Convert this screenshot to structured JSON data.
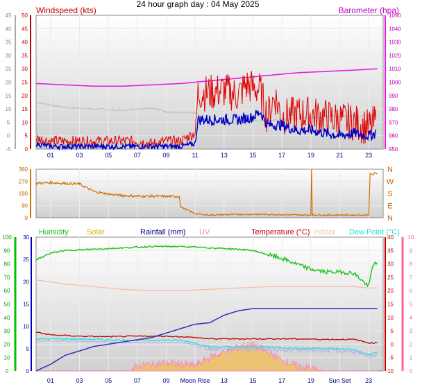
{
  "page_title": "24 hour graph day : 04 May 2025",
  "colors": {
    "wind": "#e00000",
    "wind_avg": "#0000c8",
    "barometer": "#e020e0",
    "hum_main": "#c0c0c0",
    "wind_dir": "#d07000",
    "humidity": "#20c020",
    "solar": "#c8b400",
    "rainfall": "#000080",
    "uv": "#ff80c0",
    "temperature": "#c00000",
    "indoor": "#f0c0a8",
    "dewpoint": "#20e0e0",
    "axis_green": "#00c000",
    "axis_pink": "#ff60a0",
    "axis_blue": "#0000c0"
  },
  "x_ticks": [
    "01",
    "03",
    "05",
    "07",
    "09",
    "11",
    "13",
    "15",
    "17",
    "19",
    "21",
    "23"
  ],
  "chart_data": [
    {
      "type": "line",
      "panel": "wind_barometer",
      "left_axis_label": "Windspeed (kts)",
      "right_axis_label": "Barometer (hpa)",
      "left_outer_ticks": [
        "45",
        "40",
        "35",
        "30",
        "25",
        "20",
        "15",
        "10",
        "5",
        "0",
        "-5"
      ],
      "left_inner_ticks": [
        "50",
        "45",
        "40",
        "35",
        "30",
        "25",
        "20",
        "15",
        "10",
        "5",
        "0"
      ],
      "right_ticks": [
        "1050",
        "1040",
        "1030",
        "1020",
        "1010",
        "1000",
        "990",
        "980",
        "970",
        "960",
        "950"
      ],
      "ylim": [
        0,
        50
      ],
      "y2lim": [
        950,
        1050
      ],
      "series": [
        {
          "key": "gust",
          "x": [
            0,
            1,
            2,
            3,
            4,
            5,
            6,
            7,
            8,
            9,
            10,
            11,
            11.2,
            12,
            13,
            14,
            14.5,
            15,
            15.5,
            16,
            16.5,
            17,
            18,
            19,
            20,
            21,
            22,
            23,
            23.5
          ],
          "values": [
            4,
            3,
            3,
            3,
            3,
            3,
            3,
            3,
            2,
            3,
            3,
            6,
            21,
            21,
            22,
            20,
            24,
            23,
            22,
            12,
            20,
            12,
            13,
            13,
            12,
            11,
            10,
            8,
            10
          ]
        },
        {
          "key": "wind_avg",
          "x": [
            0,
            1,
            2,
            3,
            4,
            5,
            6,
            7,
            8,
            9,
            10,
            11,
            11.2,
            12,
            13,
            14,
            15,
            15.5,
            16,
            17,
            18,
            19,
            20,
            21,
            22,
            23,
            23.5
          ],
          "values": [
            2,
            1,
            1,
            1,
            1,
            1,
            1,
            1,
            1,
            1,
            1,
            2,
            11,
            11,
            11,
            11,
            12,
            14,
            9,
            9,
            7,
            7,
            6,
            5,
            6,
            5,
            6
          ]
        },
        {
          "key": "barometer",
          "x": [
            0,
            2,
            4,
            6,
            8,
            10,
            12,
            14,
            16,
            18,
            20,
            22,
            23.6
          ],
          "values": [
            999,
            998,
            997,
            997,
            998,
            999,
            1001,
            1003,
            1005,
            1007,
            1008,
            1009,
            1010
          ]
        },
        {
          "key": "grey_trace",
          "x": [
            0,
            2,
            4,
            6,
            8,
            9,
            10,
            11,
            12,
            14,
            16,
            18,
            20,
            22,
            23.6
          ],
          "values": [
            985,
            981,
            980,
            979,
            981,
            978,
            977,
            977,
            970,
            970,
            971,
            973,
            974,
            975,
            975
          ]
        }
      ]
    },
    {
      "type": "line",
      "panel": "wind_direction",
      "left_ticks": [
        "360",
        "270",
        "180",
        "90",
        "0"
      ],
      "right_labels": [
        "N",
        "W",
        "S",
        "E",
        "N"
      ],
      "ylim": [
        0,
        360
      ],
      "series": [
        {
          "key": "direction",
          "x": [
            0,
            1,
            2,
            3,
            4,
            5,
            6,
            7,
            8,
            9,
            9.9,
            10,
            11,
            12,
            14,
            16,
            18,
            19,
            19.05,
            19.1,
            20,
            22,
            23,
            23.1,
            23.3,
            23.6
          ],
          "values": [
            255,
            260,
            255,
            250,
            195,
            175,
            165,
            160,
            160,
            158,
            158,
            80,
            30,
            20,
            25,
            25,
            20,
            20,
            360,
            20,
            20,
            20,
            20,
            330,
            325,
            330
          ]
        }
      ]
    },
    {
      "type": "line",
      "panel": "temperature_humidity",
      "legend": [
        "Humidity",
        "Solar",
        "Rainfall (mm)",
        "UV",
        "Temperature (°C)",
        "Indoor",
        "Dew Point (°C)"
      ],
      "humidity_ticks": [
        "100",
        "90",
        "80",
        "70",
        "60",
        "50",
        "40",
        "30",
        "20",
        "10",
        "0"
      ],
      "rain_ticks": [
        "30",
        "25",
        "20",
        "15",
        "10",
        "5",
        "0"
      ],
      "temp_ticks": [
        "40",
        "35",
        "30",
        "25",
        "20",
        "15",
        "10",
        "5",
        "0",
        "-5",
        "-10"
      ],
      "uv_ticks": [
        "10",
        "9",
        "8",
        "7",
        "6",
        "5",
        "4",
        "3",
        "2",
        "1",
        "0"
      ],
      "x_extra_labels": [
        "Moon Rise",
        "Sun Set"
      ],
      "ylim": [
        -10,
        40
      ],
      "series": [
        {
          "key": "humidity",
          "axis": "humidity",
          "x": [
            0,
            1,
            2,
            4,
            6,
            8,
            10,
            12,
            14,
            15,
            16,
            17,
            18,
            19,
            20,
            21,
            22,
            23,
            23.3,
            23.6
          ],
          "values": [
            83,
            88,
            90,
            91,
            92,
            93,
            93,
            92,
            91,
            90,
            87,
            84,
            80,
            76,
            74,
            74,
            73,
            63,
            80,
            80
          ]
        },
        {
          "key": "rainfall",
          "axis": "rain",
          "x": [
            0,
            1,
            2,
            3,
            4,
            6,
            8,
            9,
            10,
            11,
            12,
            13,
            14,
            15,
            16,
            17,
            18,
            19,
            20,
            22,
            23,
            23.6
          ],
          "values": [
            0,
            1.5,
            3.5,
            4.5,
            5.5,
            6.5,
            7.5,
            8.5,
            9.5,
            10.5,
            10.8,
            12.5,
            13.5,
            14,
            14,
            14,
            14,
            14,
            14,
            14,
            14,
            14
          ]
        },
        {
          "key": "temperature",
          "axis": "temp",
          "x": [
            0,
            1,
            3,
            5,
            7,
            9,
            10,
            11,
            12,
            14,
            16,
            18,
            20,
            22,
            23,
            23.6
          ],
          "values": [
            4.5,
            3.5,
            3,
            2.8,
            3,
            3,
            2.8,
            2.5,
            2,
            2,
            2,
            2,
            1.8,
            1.8,
            0.5,
            0.5
          ]
        },
        {
          "key": "indoor",
          "axis": "temp",
          "x": [
            0,
            2,
            4,
            6,
            8,
            10,
            12,
            14,
            16,
            18,
            20,
            22,
            23,
            23.6
          ],
          "values": [
            24,
            22.5,
            21.5,
            20.5,
            20,
            20,
            20.5,
            21,
            21.5,
            21.5,
            21.5,
            21.5,
            21,
            21
          ]
        },
        {
          "key": "dewpoint",
          "axis": "temp",
          "x": [
            0,
            2,
            4,
            6,
            8,
            10,
            11,
            12,
            14,
            16,
            18,
            20,
            22,
            23,
            23.6
          ],
          "values": [
            2,
            2,
            1.8,
            1.5,
            1.5,
            1.5,
            0.5,
            -1,
            -1,
            -1,
            -1.5,
            -1.5,
            -2,
            -4,
            -3
          ]
        },
        {
          "key": "solar",
          "axis": "temp",
          "x": [
            0,
            6.5,
            7,
            8,
            9,
            10,
            11,
            12,
            13,
            14,
            15,
            16,
            17,
            18,
            19,
            20,
            23.6
          ],
          "values": [
            -10,
            -10,
            -8,
            -7.5,
            -7,
            -7.5,
            -8,
            -5,
            -3,
            -1,
            0,
            -3,
            -6,
            -8,
            -9,
            -10,
            -10
          ]
        }
      ]
    }
  ]
}
